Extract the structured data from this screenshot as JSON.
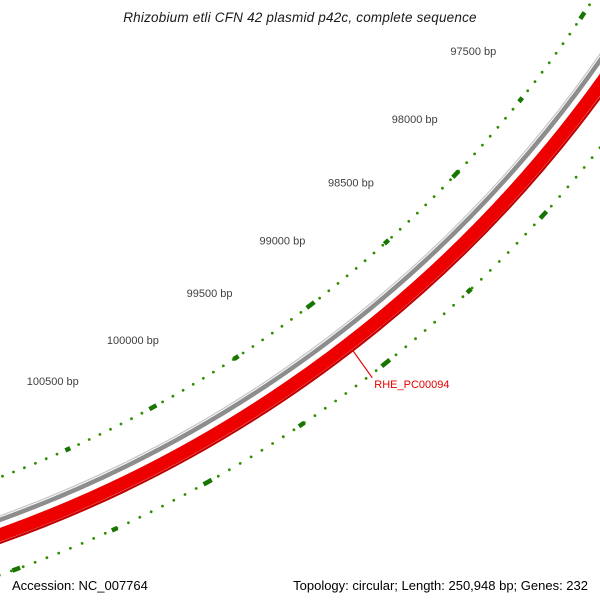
{
  "title": "Rhizobium etli CFN 42 plasmid p42c, complete sequence",
  "status_bar": {
    "left": "Accession: NC_007764",
    "right": "Topology: circular; Length: 250,948 bp; Genes: 232",
    "accession": "NC_007764",
    "topology": "circular",
    "length_bp": 250948,
    "genes": 232
  },
  "map": {
    "ruler_ticks": [
      {
        "bp": 97500,
        "label": "97500 bp"
      },
      {
        "bp": 98000,
        "label": "98000 bp"
      },
      {
        "bp": 98500,
        "label": "98500 bp"
      },
      {
        "bp": 99000,
        "label": "99000 bp"
      },
      {
        "bp": 99500,
        "label": "99500 bp"
      },
      {
        "bp": 100000,
        "label": "100000 bp"
      },
      {
        "bp": 100500,
        "label": "100500 bp"
      }
    ],
    "gene": {
      "label": "RHE_PC00094",
      "label_bp": 99050
    },
    "features_inner": [
      {
        "bp": 96980,
        "len": 40
      },
      {
        "bp": 97530,
        "len": 28
      },
      {
        "bp": 98050,
        "len": 45
      },
      {
        "bp": 98560,
        "len": 30
      },
      {
        "bp": 99080,
        "len": 50
      },
      {
        "bp": 99560,
        "len": 30
      },
      {
        "bp": 100070,
        "len": 42
      },
      {
        "bp": 100570,
        "len": 28
      },
      {
        "bp": 101080,
        "len": 45
      }
    ],
    "features_outer": [
      {
        "bp": 97350,
        "len": 35
      },
      {
        "bp": 97900,
        "len": 45
      },
      {
        "bp": 98420,
        "len": 28
      },
      {
        "bp": 98960,
        "len": 50
      },
      {
        "bp": 99470,
        "len": 32
      },
      {
        "bp": 100010,
        "len": 45
      },
      {
        "bp": 100520,
        "len": 30
      },
      {
        "bp": 101040,
        "len": 40
      },
      {
        "bp": 101480,
        "len": 35
      }
    ],
    "colors": {
      "backbone": "#8d8d8d",
      "backbone_highlight": "#c9c9c9",
      "gene": "#ec0000",
      "gene_edge": "#c00000",
      "dots": "#2f8f00",
      "features": "#177500",
      "tick_label": "#404040",
      "gene_label": "#e60000"
    }
  }
}
